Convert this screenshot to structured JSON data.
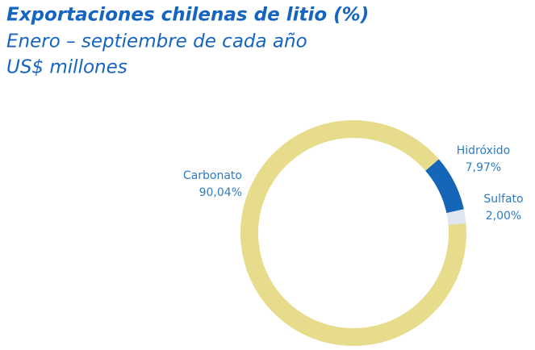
{
  "chart_data": {
    "type": "donut",
    "title": "Exportaciones chilenas de litio (%)",
    "subtitle": [
      "Enero – septiembre de cada año",
      "US$ millones"
    ],
    "categories": [
      "Carbonato",
      "Hidróxido",
      "Sulfato"
    ],
    "values": [
      90.04,
      7.97,
      2.0
    ],
    "value_labels": [
      "90,04%",
      "7,97%",
      "2,00%"
    ],
    "colors": [
      "#e7dc8b",
      "#1565b8",
      "#dfe6f2"
    ]
  }
}
